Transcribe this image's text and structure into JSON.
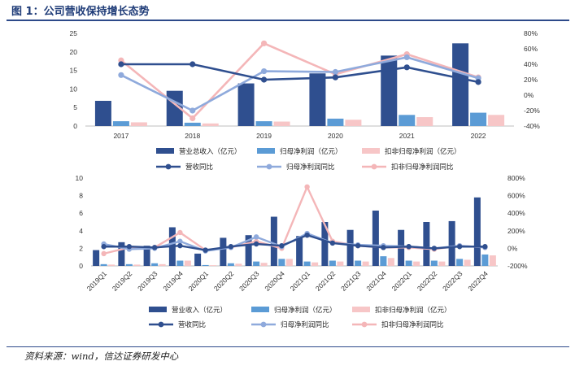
{
  "figure": {
    "title": "图 1：公司营收保持增长态势",
    "source": "资料来源：wind，信达证券研发中心"
  },
  "colors": {
    "rev_bar": "#2f4f8f",
    "np_bar": "#5b9bd5",
    "np_ded_bar": "#f7c6c7",
    "rev_line": "#2f4f8f",
    "np_line": "#8faadc",
    "np_ded_line": "#f4b6b8"
  },
  "chart_data": [
    {
      "type": "bar",
      "categories": [
        "2017",
        "2018",
        "2019",
        "2020",
        "2021",
        "2022"
      ],
      "ylim": [
        0,
        25
      ],
      "yticks": [
        0,
        5,
        10,
        15,
        20,
        25
      ],
      "y2lim": [
        -40,
        80
      ],
      "y2ticks": [
        "-40%",
        "-20%",
        "0%",
        "20%",
        "40%",
        "60%",
        "80%"
      ],
      "series": [
        {
          "name": "营业总收入（亿元）",
          "kind": "bar",
          "axis": "left",
          "values": [
            6.8,
            9.5,
            11.5,
            14.2,
            19.0,
            22.3
          ]
        },
        {
          "name": "归母净利润（亿元）",
          "kind": "bar",
          "axis": "left",
          "values": [
            1.3,
            0.9,
            1.3,
            2.0,
            3.0,
            3.6
          ]
        },
        {
          "name": "扣非归母净利润（亿元）",
          "kind": "bar",
          "axis": "left",
          "values": [
            1.0,
            0.7,
            1.2,
            1.7,
            2.4,
            3.0
          ]
        },
        {
          "name": "营收同比",
          "kind": "line",
          "axis": "right",
          "values": [
            40,
            40,
            20,
            23,
            36,
            17
          ]
        },
        {
          "name": "归母净利润同比",
          "kind": "line",
          "axis": "right",
          "values": [
            26,
            -20,
            31,
            30,
            49,
            22
          ]
        },
        {
          "name": "扣非归母净利润同比",
          "kind": "line",
          "axis": "right",
          "values": [
            45,
            -30,
            67,
            27,
            53,
            23
          ]
        }
      ]
    },
    {
      "type": "bar",
      "categories": [
        "2019Q1",
        "2019Q2",
        "2019Q3",
        "2019Q4",
        "2020Q1",
        "2020Q2",
        "2020Q3",
        "2020Q4",
        "2021Q1",
        "2021Q2",
        "2021Q3",
        "2021Q4",
        "2022Q1",
        "2022Q2",
        "2022Q3",
        "2022Q4"
      ],
      "ylim": [
        0,
        10
      ],
      "yticks": [
        0,
        2,
        4,
        6,
        8,
        10
      ],
      "y2lim": [
        -200,
        800
      ],
      "y2ticks": [
        "-200%",
        "0%",
        "200%",
        "400%",
        "600%",
        "800%"
      ],
      "series": [
        {
          "name": "营业收入（亿元）",
          "kind": "bar",
          "axis": "left",
          "values": [
            1.8,
            2.7,
            2.3,
            4.4,
            1.4,
            3.2,
            3.5,
            5.6,
            3.4,
            5.0,
            4.1,
            6.3,
            4.1,
            5.0,
            5.1,
            7.8
          ]
        },
        {
          "name": "归母净利润（亿元）",
          "kind": "bar",
          "axis": "left",
          "values": [
            0.2,
            0.2,
            0.3,
            0.6,
            0.1,
            0.3,
            0.5,
            0.8,
            0.5,
            0.6,
            0.6,
            1.1,
            0.6,
            0.6,
            0.8,
            1.3
          ]
        },
        {
          "name": "扣非归母净利润（亿元）",
          "kind": "bar",
          "axis": "left",
          "values": [
            0.15,
            0.15,
            0.2,
            0.6,
            0.08,
            0.25,
            0.35,
            0.8,
            0.4,
            0.5,
            0.5,
            0.9,
            0.5,
            0.5,
            0.7,
            1.2
          ]
        },
        {
          "name": "营收同比",
          "kind": "line",
          "axis": "right",
          "values": [
            20,
            20,
            10,
            30,
            -20,
            20,
            50,
            30,
            150,
            60,
            30,
            10,
            20,
            0,
            20,
            20
          ]
        },
        {
          "name": "归母净利润同比",
          "kind": "line",
          "axis": "right",
          "values": [
            50,
            -10,
            0,
            80,
            -30,
            10,
            130,
            20,
            170,
            60,
            40,
            30,
            20,
            0,
            30,
            10
          ]
        },
        {
          "name": "扣非归母净利润同比",
          "kind": "line",
          "axis": "right",
          "values": [
            -60,
            10,
            10,
            180,
            -20,
            10,
            80,
            0,
            700,
            80,
            30,
            10,
            10,
            -10,
            30,
            10
          ]
        }
      ]
    }
  ]
}
